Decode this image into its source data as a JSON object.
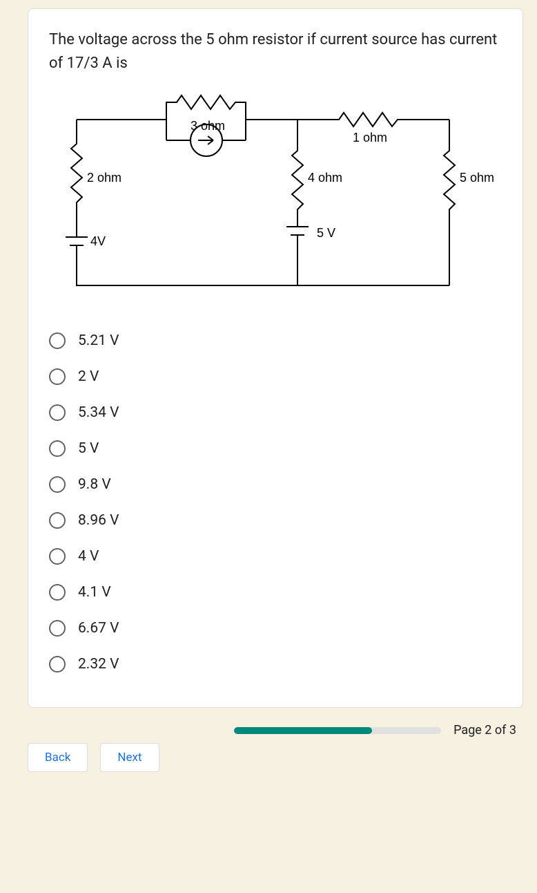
{
  "question": {
    "text": "The voltage across the 5 ohm resistor if current source has current of 17/3 A is"
  },
  "circuit": {
    "labels": {
      "r_3ohm": "3 ohm",
      "r_1ohm": "1 ohm",
      "r_2ohm": "2 ohm",
      "r_4ohm": "4 ohm",
      "r_5ohm": "5 ohm",
      "v_4v": "4V",
      "v_5v": "5 V"
    },
    "colors": {
      "stroke": "#000000",
      "bg": "#ffffff"
    }
  },
  "options": [
    {
      "label": "5.21 V"
    },
    {
      "label": "2 V"
    },
    {
      "label": "5.34 V"
    },
    {
      "label": "5 V"
    },
    {
      "label": "9.8 V"
    },
    {
      "label": "8.96 V"
    },
    {
      "label": "4 V"
    },
    {
      "label": "4.1 V"
    },
    {
      "label": "6.67 V"
    },
    {
      "label": "2.32 V"
    }
  ],
  "buttons": {
    "back": "Back",
    "next": "Next"
  },
  "progress": {
    "page_label": "Page 2 of 3",
    "percent": 66.6
  }
}
